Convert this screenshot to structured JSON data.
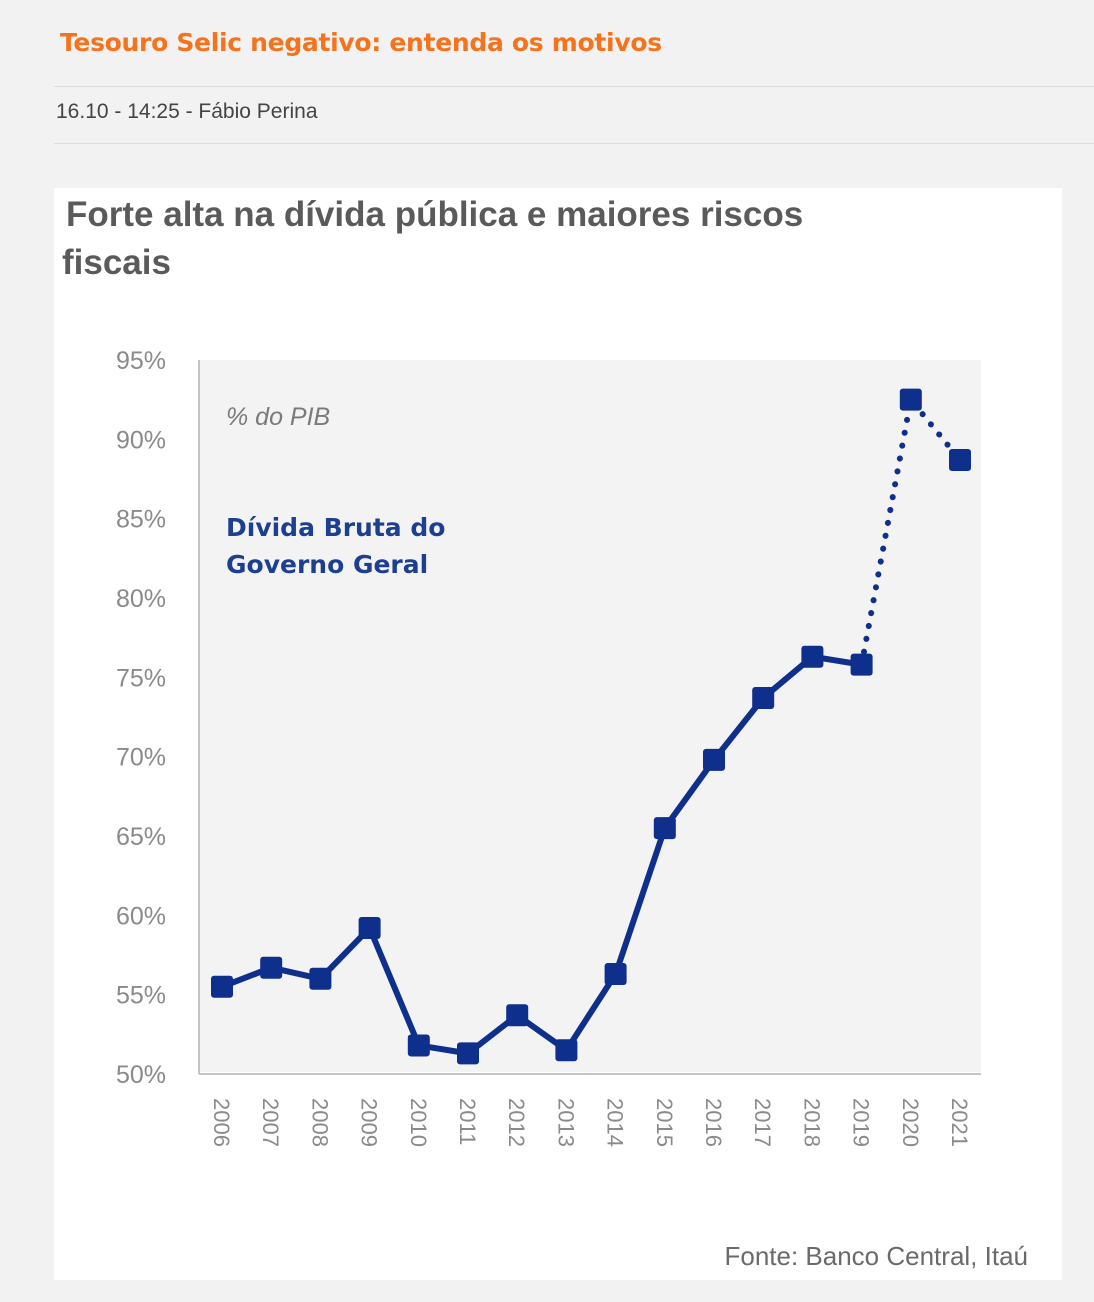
{
  "article": {
    "headline": "Tesouro Selic negativo: entenda os motivos",
    "meta": "16.10 - 14:25 - Fábio Perina"
  },
  "colors": {
    "headline": "#f5731c",
    "series": "#0f2f8c",
    "plot_background": "#f3f3f3"
  },
  "chart_data": {
    "type": "line",
    "title_lines": [
      "Forte alta na dívida pública e maiores riscos",
      "fiscais"
    ],
    "unit_label": "% do PIB",
    "series_label_lines": [
      "Dívida Bruta do",
      "Governo Geral"
    ],
    "source": "Fonte: Banco Central, Itaú",
    "x": [
      "2006",
      "2007",
      "2008",
      "2009",
      "2010",
      "2011",
      "2012",
      "2013",
      "2014",
      "2015",
      "2016",
      "2017",
      "2018",
      "2019",
      "2020",
      "2021"
    ],
    "ylim": [
      50,
      95
    ],
    "yticks": [
      50,
      55,
      60,
      65,
      70,
      75,
      80,
      85,
      90,
      95
    ],
    "ytick_labels": [
      "50%",
      "55%",
      "60%",
      "65%",
      "70%",
      "75%",
      "80%",
      "85%",
      "90%",
      "95%"
    ],
    "series": [
      {
        "name": "Dívida Bruta do Governo Geral",
        "values": [
          55.5,
          56.7,
          56.0,
          59.2,
          51.8,
          51.3,
          53.7,
          51.5,
          56.3,
          65.5,
          69.8,
          73.7,
          76.3,
          75.8,
          92.5,
          88.7
        ],
        "actual_until_index": 13,
        "projection_from_index": 13
      }
    ],
    "grid": false
  }
}
